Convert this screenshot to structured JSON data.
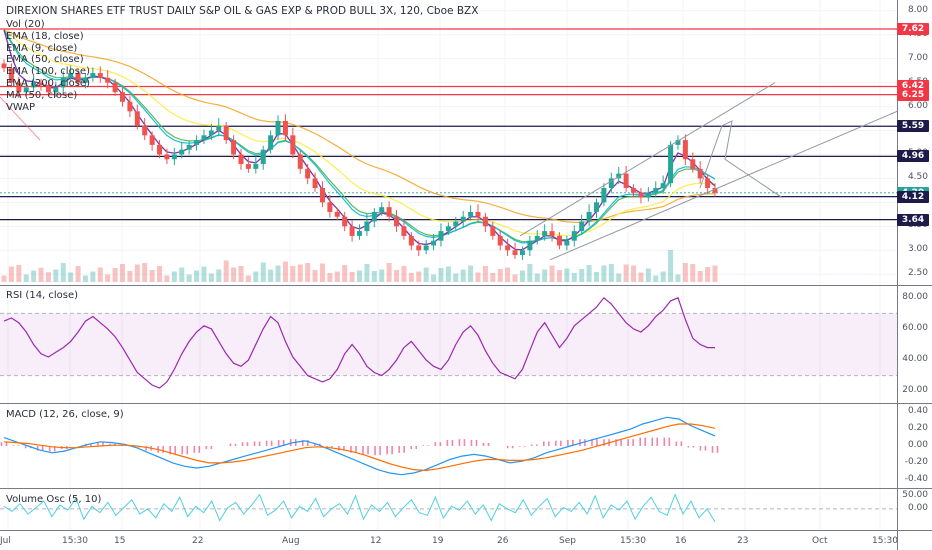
{
  "header": {
    "title": "DIREXION SHARES ETF TRUST DAILY S&P OIL & GAS EXP & PROD BULL 3X, 120, Cboe BZX",
    "indicators": [
      "Vol (20)",
      "EMA (18, close)",
      "EMA (9, close)",
      "EMA (50, close)",
      "EMA (100, close)",
      "EMA (200, close)",
      "MA (50, close)",
      "VWAP"
    ]
  },
  "panes": {
    "rsi_label": "RSI (14, close)",
    "macd_label": "MACD (12, 26, close, 9)",
    "volosc_label": "Volume Osc (5, 10)"
  },
  "price_levels": [
    {
      "value": "7.62",
      "color": "#f23645"
    },
    {
      "value": "6.42",
      "color": "#f23645"
    },
    {
      "value": "6.25",
      "color": "#f23645"
    },
    {
      "value": "5.59",
      "color": "#1e1b4b"
    },
    {
      "value": "4.96",
      "color": "#1e1b4b"
    },
    {
      "value": "4.20",
      "color": "#26a69a"
    },
    {
      "value": "4.12",
      "color": "#1e1b4b"
    },
    {
      "value": "3.64",
      "color": "#1e1b4b"
    }
  ],
  "colors": {
    "up": "#26a69a",
    "down": "#ef5350",
    "rsi": "#9c27b0",
    "macd": "#2196f3",
    "signal": "#ff6d00",
    "ema200": "#f5a623",
    "ema100": "#ffeb3b",
    "ema50": "#4caf50",
    "ma50": "#00bcd4",
    "ema18": "#e91e63",
    "ema9": "#673ab7"
  },
  "chart_data": [
    {
      "type": "candlestick",
      "title": "DIREXION SHARES ETF TRUST DAILY S&P OIL & GAS EXP & PROD BULL 3X, 120, Cboe BZX",
      "x_ticks": [
        "Jul",
        "15:30",
        "15",
        "22",
        "Aug",
        "12",
        "19",
        "26",
        "Sep",
        "15:30",
        "16",
        "23",
        "Oct",
        "15:30"
      ],
      "y_ticks": [
        "8.00",
        "7.50",
        "7.00",
        "6.50",
        "6.00",
        "5.50",
        "5.00",
        "4.50",
        "4.00",
        "3.50",
        "3.00",
        "2.50"
      ],
      "ylim": [
        2.4,
        8.1
      ],
      "close": [
        6.8,
        6.5,
        6.3,
        6.4,
        6.5,
        6.45,
        6.3,
        6.4,
        6.6,
        6.7,
        6.5,
        6.6,
        6.7,
        6.6,
        6.5,
        6.3,
        6.1,
        5.9,
        5.6,
        5.4,
        5.2,
        5.0,
        4.9,
        5.0,
        5.1,
        5.2,
        5.3,
        5.4,
        5.5,
        5.6,
        5.3,
        5.0,
        4.8,
        4.7,
        4.8,
        5.1,
        5.4,
        5.7,
        5.4,
        5.0,
        4.7,
        4.5,
        4.3,
        4.0,
        3.8,
        3.7,
        3.5,
        3.3,
        3.4,
        3.6,
        3.8,
        3.9,
        3.7,
        3.5,
        3.3,
        3.1,
        3.0,
        3.1,
        3.2,
        3.4,
        3.5,
        3.6,
        3.7,
        3.8,
        3.7,
        3.5,
        3.3,
        3.1,
        3.0,
        2.9,
        3.0,
        3.2,
        3.3,
        3.4,
        3.3,
        3.1,
        3.2,
        3.4,
        3.6,
        3.8,
        4.0,
        4.3,
        4.5,
        4.6,
        4.3,
        4.2,
        4.1,
        4.2,
        4.3,
        4.4,
        5.2,
        5.3,
        4.9,
        4.7,
        4.5,
        4.3,
        4.2
      ],
      "annotations": [
        "7.62",
        "6.42",
        "6.25",
        "5.59",
        "4.96",
        "4.20",
        "4.12",
        "3.64"
      ]
    },
    {
      "type": "line",
      "title": "RSI (14, close)",
      "y_ticks": [
        "80.00",
        "60.00",
        "40.00",
        "20.00"
      ],
      "ylim": [
        15,
        85
      ],
      "bands": [
        30,
        70
      ],
      "values": [
        65,
        67,
        64,
        58,
        50,
        44,
        42,
        45,
        48,
        52,
        58,
        65,
        68,
        64,
        60,
        55,
        48,
        40,
        32,
        28,
        24,
        22,
        26,
        34,
        44,
        52,
        58,
        62,
        60,
        52,
        44,
        38,
        36,
        40,
        50,
        60,
        68,
        64,
        52,
        42,
        36,
        30,
        28,
        26,
        28,
        34,
        44,
        50,
        44,
        36,
        32,
        30,
        34,
        40,
        48,
        52,
        46,
        40,
        36,
        34,
        40,
        50,
        58,
        62,
        56,
        46,
        38,
        32,
        30,
        28,
        34,
        46,
        58,
        64,
        56,
        48,
        54,
        62,
        66,
        70,
        74,
        80,
        76,
        70,
        64,
        60,
        58,
        62,
        68,
        72,
        78,
        80,
        66,
        54,
        50,
        48,
        48
      ]
    },
    {
      "type": "line",
      "title": "MACD (12, 26, close, 9)",
      "y_ticks": [
        "0.40",
        "0.20",
        "0.00",
        "-0.20",
        "-0.40"
      ],
      "ylim": [
        -0.45,
        0.45
      ],
      "series": [
        {
          "name": "MACD",
          "values": [
            0.1,
            0.05,
            0,
            -0.05,
            -0.08,
            -0.06,
            -0.02,
            0.02,
            0.05,
            0.04,
            0.02,
            -0.02,
            -0.08,
            -0.14,
            -0.2,
            -0.24,
            -0.26,
            -0.24,
            -0.2,
            -0.16,
            -0.12,
            -0.08,
            -0.04,
            0,
            0.04,
            0.06,
            0.02,
            -0.04,
            -0.1,
            -0.16,
            -0.22,
            -0.28,
            -0.32,
            -0.34,
            -0.32,
            -0.28,
            -0.22,
            -0.16,
            -0.12,
            -0.1,
            -0.12,
            -0.16,
            -0.2,
            -0.18,
            -0.14,
            -0.08,
            -0.04,
            0,
            0.04,
            0.08,
            0.12,
            0.16,
            0.2,
            0.26,
            0.3,
            0.34,
            0.32,
            0.24,
            0.18,
            0.12
          ]
        },
        {
          "name": "Signal",
          "values": [
            0.05,
            0.04,
            0.03,
            0.01,
            -0.01,
            -0.02,
            -0.02,
            -0.01,
            0,
            0.01,
            0.01,
            0,
            -0.02,
            -0.05,
            -0.09,
            -0.13,
            -0.17,
            -0.2,
            -0.2,
            -0.19,
            -0.17,
            -0.14,
            -0.11,
            -0.08,
            -0.05,
            -0.02,
            -0.01,
            -0.02,
            -0.04,
            -0.07,
            -0.11,
            -0.16,
            -0.21,
            -0.25,
            -0.28,
            -0.29,
            -0.27,
            -0.24,
            -0.21,
            -0.18,
            -0.16,
            -0.16,
            -0.17,
            -0.17,
            -0.16,
            -0.14,
            -0.11,
            -0.08,
            -0.05,
            -0.01,
            0.03,
            0.07,
            0.11,
            0.15,
            0.19,
            0.23,
            0.26,
            0.26,
            0.24,
            0.21
          ]
        }
      ]
    },
    {
      "type": "line",
      "title": "Volume Osc (5, 10)",
      "y_ticks": [
        "50.00",
        "0.00"
      ],
      "ylim": [
        -70,
        65
      ],
      "values": [
        10,
        -10,
        20,
        -20,
        5,
        30,
        -30,
        15,
        -5,
        40,
        -40,
        10,
        -15,
        25,
        -25,
        5,
        35,
        -20,
        0,
        -35,
        20,
        -10,
        45,
        -30,
        10,
        -15,
        30,
        -45,
        5,
        25,
        -20,
        15,
        55,
        -25,
        -5,
        30,
        -35,
        10,
        -10,
        40,
        -30,
        0,
        20,
        -20,
        50,
        -40,
        15,
        -10,
        25,
        -30,
        5,
        35,
        -15,
        -25,
        45,
        -35,
        10,
        -5,
        30,
        -20,
        15,
        -45,
        20,
        0,
        -15,
        35,
        -25,
        10,
        40,
        -30,
        5,
        -10,
        25,
        -20,
        50,
        -35,
        15,
        -5,
        30,
        -40,
        10,
        45,
        -10,
        -25,
        55,
        -20,
        30,
        -35,
        0,
        -50
      ]
    }
  ]
}
